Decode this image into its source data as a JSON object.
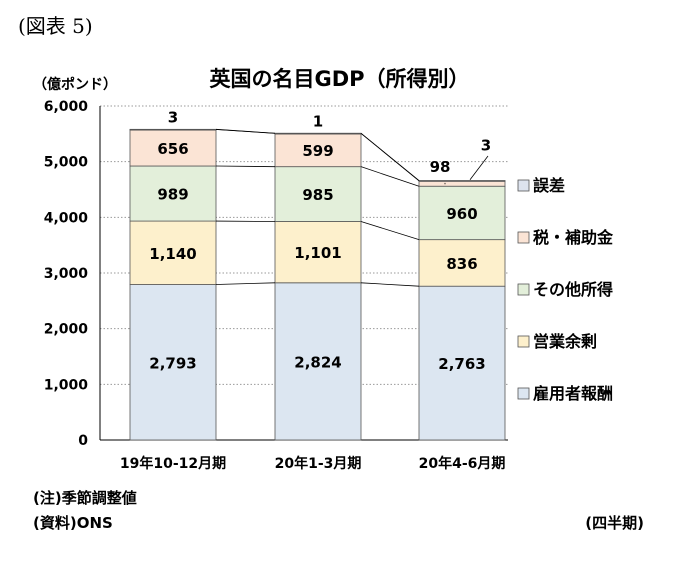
{
  "figure_label": "(図表 5)",
  "note": "(注)季節調整値",
  "source": "(資料)ONS",
  "period_label": "(四半期)",
  "chart_data": {
    "type": "bar",
    "stacked": true,
    "title": "英国の名目GDP（所得別）",
    "ylabel": "（億ポンド）",
    "ylim": [
      0,
      6000
    ],
    "yticks": [
      "0",
      "1,000",
      "2,000",
      "3,000",
      "4,000",
      "5,000",
      "6,000"
    ],
    "categories": [
      "19年10-12月期",
      "20年1-3月期",
      "20年4-6月期"
    ],
    "series": [
      {
        "name": "雇用者報酬",
        "values": [
          2793,
          2824,
          2763
        ],
        "labels": [
          "2,793",
          "2,824",
          "2,763"
        ],
        "color": "#dce6f1"
      },
      {
        "name": "営業余剰",
        "values": [
          1140,
          1101,
          836
        ],
        "labels": [
          "1,140",
          "1,101",
          "836"
        ],
        "color": "#fdf0cc"
      },
      {
        "name": "その他所得",
        "values": [
          989,
          985,
          960
        ],
        "labels": [
          "989",
          "985",
          "960"
        ],
        "color": "#e3efda"
      },
      {
        "name": "税・補助金",
        "values": [
          656,
          599,
          98
        ],
        "labels": [
          "656",
          "599",
          "98"
        ],
        "color": "#fbe4d5"
      },
      {
        "name": "誤差",
        "values": [
          3,
          1,
          3
        ],
        "labels": [
          "3",
          "1",
          "3"
        ],
        "color": "#dde3ee"
      }
    ],
    "legend_position": "right",
    "grid": true
  }
}
